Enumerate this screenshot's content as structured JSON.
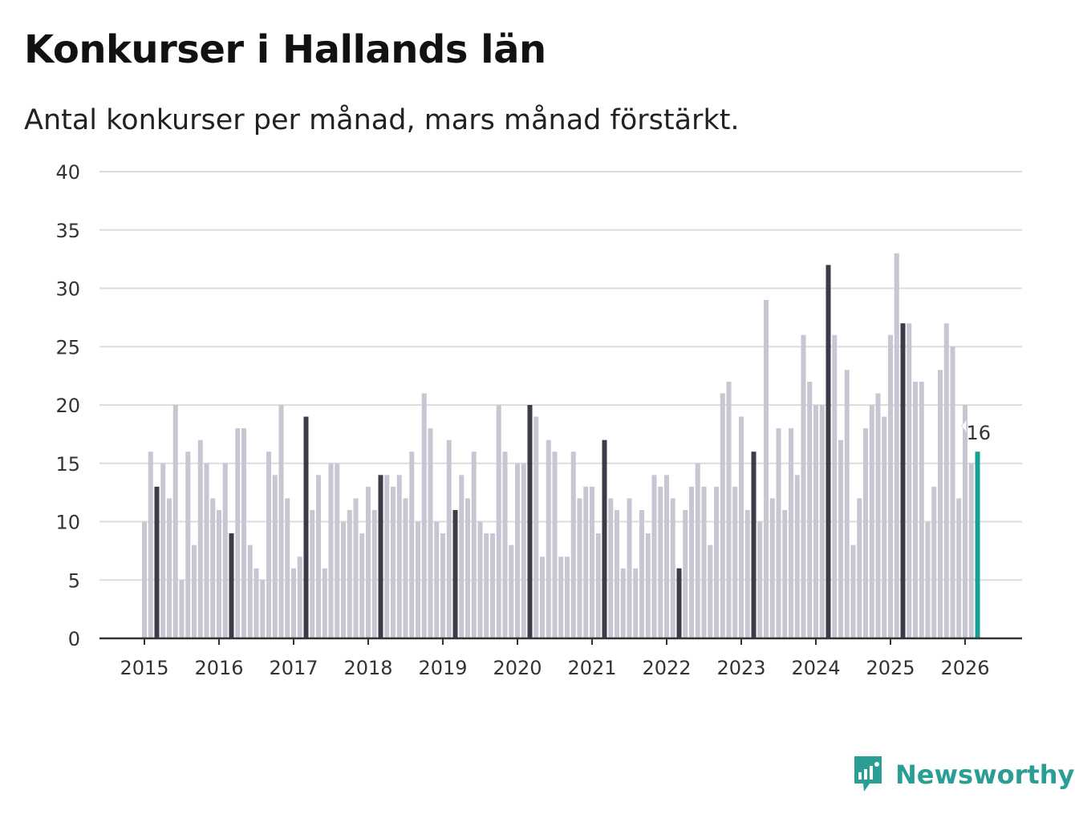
{
  "header": {
    "title": "Konkurser i Hallands län",
    "subtitle": "Antal konkurser per månad, mars månad förstärkt."
  },
  "brand": {
    "name": "Newsworthy",
    "icon": "newsworthy-logo-icon"
  },
  "colors": {
    "bar": "#c8c6d2",
    "march": "#3d3b4a",
    "latest": "#17a196",
    "grid": "#dddddd",
    "axis": "#333333"
  },
  "chart_data": {
    "type": "bar",
    "title": "Konkurser i Hallands län",
    "subtitle": "Antal konkurser per månad, mars månad förstärkt.",
    "xlabel": "",
    "ylabel": "",
    "ylim": [
      0,
      40
    ],
    "y_ticks": [
      0,
      5,
      10,
      15,
      20,
      25,
      30,
      35,
      40
    ],
    "x_ticks": [
      "2015",
      "2016",
      "2017",
      "2018",
      "2019",
      "2020",
      "2021",
      "2022",
      "2023",
      "2024",
      "2025",
      "2026"
    ],
    "start": "2015-01",
    "end": "2026-03",
    "highlight": "March of each year",
    "grid": true,
    "last_value_label": "16",
    "series": [
      {
        "year": "2015",
        "values": [
          10,
          16,
          13,
          15,
          12,
          20,
          5,
          16,
          8,
          17,
          15,
          12
        ]
      },
      {
        "year": "2016",
        "values": [
          11,
          15,
          9,
          18,
          18,
          8,
          6,
          5,
          16,
          14,
          20,
          12
        ]
      },
      {
        "year": "2017",
        "values": [
          6,
          7,
          19,
          11,
          14,
          6,
          15,
          15,
          10,
          11,
          12,
          9
        ]
      },
      {
        "year": "2018",
        "values": [
          13,
          11,
          14,
          14,
          13,
          14,
          12,
          16,
          10,
          21,
          18,
          10
        ]
      },
      {
        "year": "2019",
        "values": [
          9,
          17,
          11,
          14,
          12,
          16,
          10,
          9,
          9,
          20,
          16,
          8
        ]
      },
      {
        "year": "2020",
        "values": [
          15,
          15,
          20,
          19,
          7,
          17,
          16,
          7,
          7,
          16,
          12,
          13
        ]
      },
      {
        "year": "2021",
        "values": [
          13,
          9,
          17,
          12,
          11,
          6,
          12,
          6,
          11,
          9,
          14,
          13
        ]
      },
      {
        "year": "2022",
        "values": [
          14,
          12,
          6,
          11,
          13,
          15,
          13,
          8,
          13,
          21,
          22,
          13
        ]
      },
      {
        "year": "2023",
        "values": [
          19,
          11,
          16,
          10,
          29,
          12,
          18,
          11,
          18,
          14,
          26,
          22
        ]
      },
      {
        "year": "2024",
        "values": [
          20,
          20,
          32,
          26,
          17,
          23,
          8,
          12,
          18,
          20,
          21,
          19
        ]
      },
      {
        "year": "2025",
        "values": [
          26,
          33,
          27,
          27,
          22,
          22,
          10,
          13,
          23,
          27,
          25,
          12
        ]
      },
      {
        "year": "2026",
        "values": [
          20,
          15,
          16
        ]
      }
    ]
  }
}
